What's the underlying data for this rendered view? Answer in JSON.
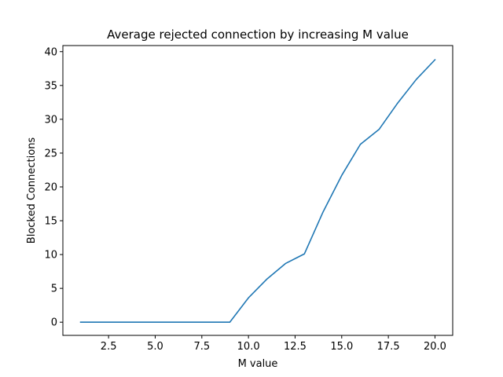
{
  "chart_data": {
    "type": "line",
    "title": "Average rejected connection by increasing M value",
    "xlabel": "M value",
    "ylabel": "Blocked Connections",
    "xlim": [
      0.05,
      20.95
    ],
    "ylim": [
      -1.95,
      40.9
    ],
    "xticks": [
      2.5,
      5.0,
      7.5,
      10.0,
      12.5,
      15.0,
      17.5,
      20.0
    ],
    "xtick_labels": [
      "2.5",
      "5.0",
      "7.5",
      "10.0",
      "12.5",
      "15.0",
      "17.5",
      "20.0"
    ],
    "yticks": [
      0,
      5,
      10,
      15,
      20,
      25,
      30,
      35,
      40
    ],
    "ytick_labels": [
      "0",
      "5",
      "10",
      "15",
      "20",
      "25",
      "30",
      "35",
      "40"
    ],
    "grid": false,
    "series": [
      {
        "color": "#1f77b4",
        "x": [
          1,
          2,
          3,
          4,
          5,
          6,
          7,
          8,
          9,
          10,
          11,
          12,
          13,
          14,
          15,
          16,
          17,
          18,
          19,
          20
        ],
        "y": [
          0,
          0,
          0,
          0,
          0,
          0,
          0,
          0,
          0,
          3.6,
          6.4,
          8.7,
          10.1,
          16.3,
          21.7,
          26.3,
          28.5,
          32.4,
          35.9,
          38.8
        ]
      }
    ]
  }
}
